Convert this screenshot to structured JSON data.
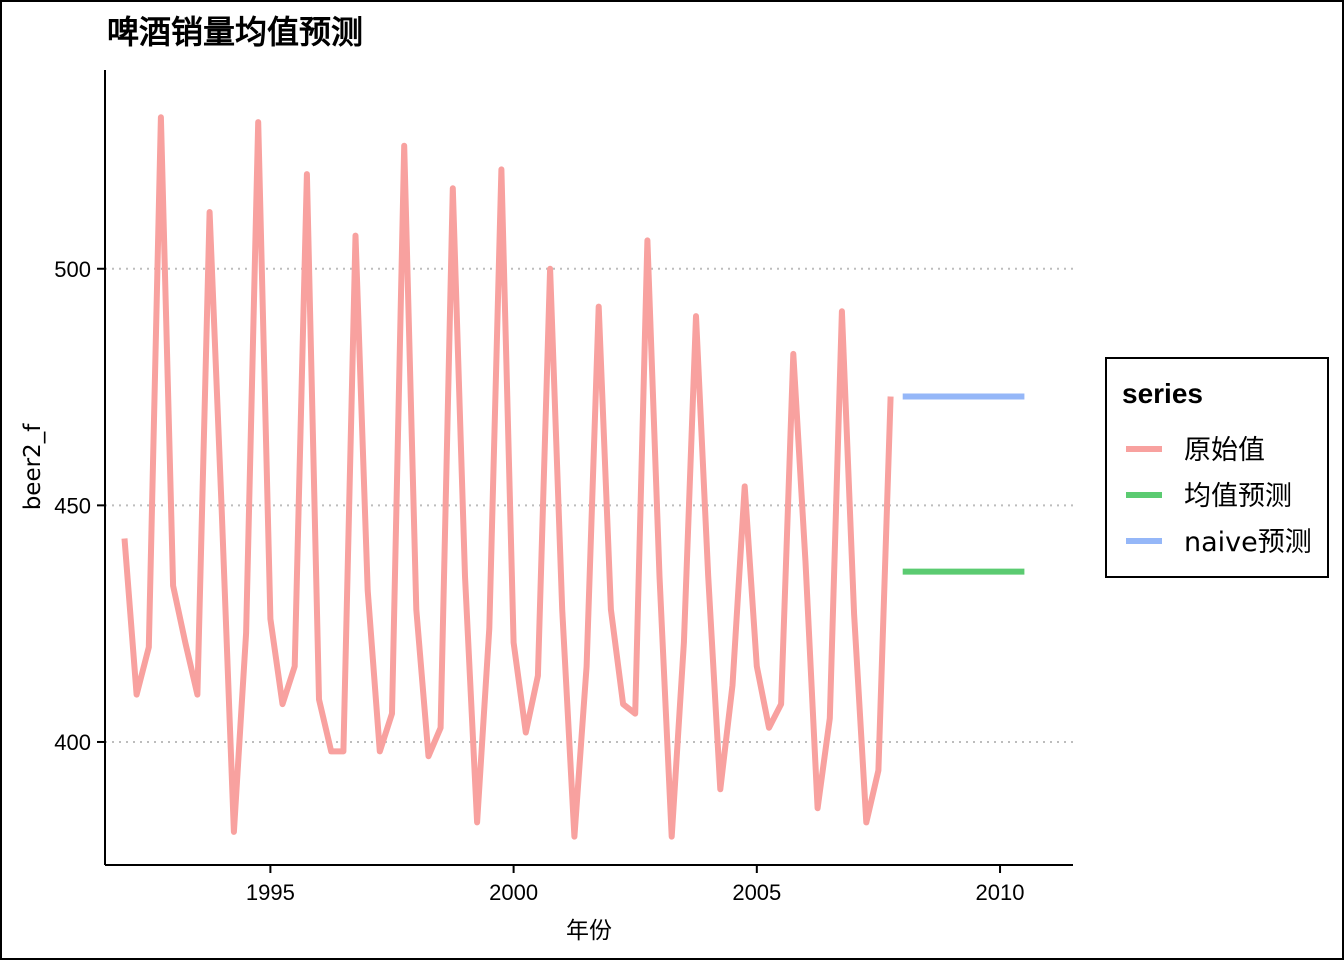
{
  "chart_data": {
    "type": "line",
    "title": "啤酒销量均值预测",
    "xlabel": "年份",
    "ylabel": "beer2_f",
    "xlim": [
      1991.6,
      2011.5
    ],
    "ylim": [
      374,
      542
    ],
    "x_ticks": [
      1995,
      2000,
      2005,
      2010
    ],
    "y_ticks": [
      400,
      450,
      500
    ],
    "grid": "horizontal-dotted",
    "legend": {
      "title": "series",
      "position": "right"
    },
    "series": [
      {
        "name": "原始值",
        "color": "#F8A19F",
        "x": [
          1992.0,
          1992.25,
          1992.5,
          1992.75,
          1993.0,
          1993.25,
          1993.5,
          1993.75,
          1994.0,
          1994.25,
          1994.5,
          1994.75,
          1995.0,
          1995.25,
          1995.5,
          1995.75,
          1996.0,
          1996.25,
          1996.5,
          1996.75,
          1997.0,
          1997.25,
          1997.5,
          1997.75,
          1998.0,
          1998.25,
          1998.5,
          1998.75,
          1999.0,
          1999.25,
          1999.5,
          1999.75,
          2000.0,
          2000.25,
          2000.5,
          2000.75,
          2001.0,
          2001.25,
          2001.5,
          2001.75,
          2002.0,
          2002.25,
          2002.5,
          2002.75,
          2003.0,
          2003.25,
          2003.5,
          2003.75,
          2004.0,
          2004.25,
          2004.5,
          2004.75,
          2005.0,
          2005.25,
          2005.5,
          2005.75,
          2006.0,
          2006.25,
          2006.5,
          2006.75,
          2007.0,
          2007.25,
          2007.5,
          2007.75
        ],
        "values": [
          443,
          410,
          420,
          532,
          433,
          421,
          410,
          512,
          449,
          381,
          423,
          531,
          426,
          408,
          416,
          520,
          409,
          398,
          398,
          507,
          432,
          398,
          406,
          526,
          428,
          397,
          403,
          517,
          435,
          383,
          424,
          521,
          421,
          402,
          414,
          500,
          428,
          380,
          416,
          492,
          428,
          408,
          406,
          506,
          435,
          380,
          421,
          490,
          435,
          390,
          412,
          454,
          416,
          403,
          408,
          482,
          438,
          386,
          405,
          491,
          427,
          383,
          394,
          473
        ]
      },
      {
        "name": "均值预测",
        "color": "#5BCB71",
        "x": [
          2008.0,
          2010.5
        ],
        "values": [
          436,
          436
        ]
      },
      {
        "name": "naive预测",
        "color": "#95B7F8",
        "x": [
          2008.0,
          2010.5
        ],
        "values": [
          473,
          473
        ]
      }
    ]
  }
}
